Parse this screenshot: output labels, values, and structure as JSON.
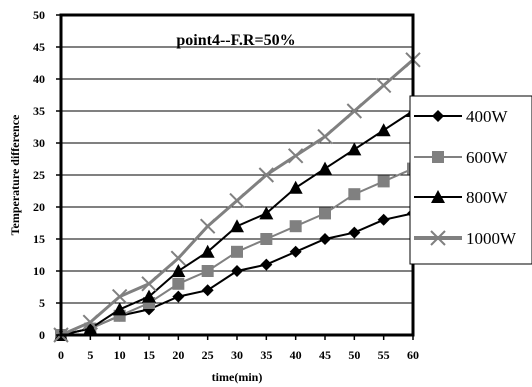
{
  "chart_data": {
    "type": "line",
    "title": "point4--F.R=50%",
    "xlabel": "time(min)",
    "ylabel": "Temperature difference",
    "x": [
      0,
      5,
      10,
      15,
      20,
      25,
      30,
      35,
      40,
      45,
      50,
      55,
      60
    ],
    "xlim": [
      0,
      60
    ],
    "ylim": [
      0,
      50
    ],
    "x_ticks": [
      "0",
      "5",
      "10",
      "15",
      "20",
      "25",
      "30",
      "35",
      "40",
      "45",
      "50",
      "55",
      "60"
    ],
    "y_ticks": [
      "0",
      "5",
      "10",
      "15",
      "20",
      "25",
      "30",
      "35",
      "40",
      "45",
      "50"
    ],
    "grid": "horizontal",
    "legend_position": "right",
    "series": [
      {
        "name": "400W",
        "marker": "diamond",
        "color": "#000000",
        "values": [
          0,
          1,
          3,
          4,
          6,
          7,
          10,
          11,
          13,
          15,
          16,
          18,
          19
        ]
      },
      {
        "name": "600W",
        "marker": "square",
        "color": "#808080",
        "values": [
          0,
          1,
          3,
          5,
          8,
          10,
          13,
          15,
          17,
          19,
          22,
          24,
          26
        ]
      },
      {
        "name": "800W",
        "marker": "triangle",
        "color": "#000000",
        "values": [
          0,
          1,
          4,
          6,
          10,
          13,
          17,
          19,
          23,
          26,
          29,
          32,
          35
        ]
      },
      {
        "name": "1000W",
        "marker": "x",
        "color": "#808080",
        "values": [
          0,
          2,
          6,
          8,
          12,
          17,
          21,
          25,
          28,
          31,
          35,
          39,
          43
        ]
      }
    ]
  }
}
